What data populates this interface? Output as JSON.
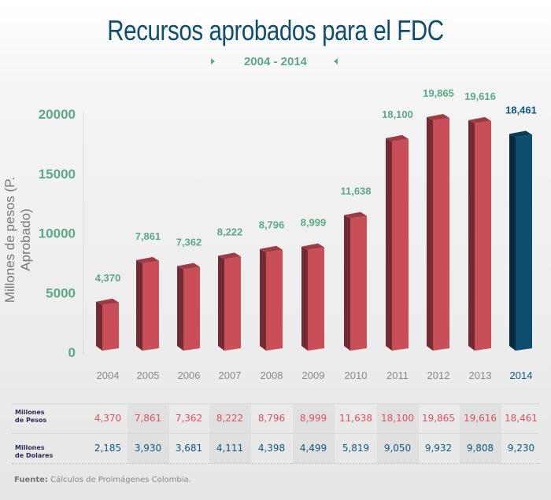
{
  "title": "Recursos aprobados para el FDC",
  "subtitle": "2004 - 2014",
  "colors": {
    "title": "#0e4d6e",
    "accent_green": "#5aaa86",
    "bar_red_front": "#c84e58",
    "bar_red_side": "#722a33",
    "bar_red_top": "#9e3c46",
    "bar_blue_front": "#0e4d6e",
    "bar_blue_side": "#062a40",
    "bar_blue_top": "#0a3b56",
    "pesos_text": "#e0505e",
    "dolares_text": "#0e5a80"
  },
  "chart_data": {
    "type": "bar",
    "title": "Recursos aprobados para el FDC",
    "subtitle": "2004 - 2014",
    "xlabel": "",
    "ylabel": "Millones de pesos (P. Aprobado)",
    "ylim": [
      0,
      20000
    ],
    "yticks": [
      0,
      5000,
      10000,
      15000,
      20000
    ],
    "ytick_labels": [
      "0",
      "5000",
      "10000",
      "15000",
      "20000"
    ],
    "categories": [
      "2004",
      "2005",
      "2006",
      "2007",
      "2008",
      "2009",
      "2010",
      "2011",
      "2012",
      "2013",
      "2014"
    ],
    "values": [
      4370,
      7861,
      7362,
      8222,
      8796,
      8999,
      11638,
      18100,
      19865,
      19616,
      18461
    ],
    "data_labels": [
      "4,370",
      "7,861",
      "7,362",
      "8,222",
      "8,796",
      "8,999",
      "11,638",
      "18,100",
      "19,865",
      "19,616",
      "18,461"
    ],
    "highlight_category": "2014",
    "grid": false,
    "legend": "none"
  },
  "table": {
    "rows": [
      {
        "label_line1": "Millones",
        "label_line2": "de Pesos",
        "values": [
          "4,370",
          "7,861",
          "7,362",
          "8,222",
          "8,796",
          "8,999",
          "11,638",
          "18,100",
          "19,865",
          "19,616",
          "18,461"
        ]
      },
      {
        "label_line1": "Millones",
        "label_line2": "de Dolares",
        "values": [
          "2,185",
          "3,930",
          "3,681",
          "4,111",
          "4,398",
          "4,499",
          "5,819",
          "9,050",
          "9,932",
          "9,808",
          "9,230"
        ]
      }
    ]
  },
  "source": {
    "label": "Fuente:",
    "text": " Cálculos de Proimágenes Colombia."
  }
}
